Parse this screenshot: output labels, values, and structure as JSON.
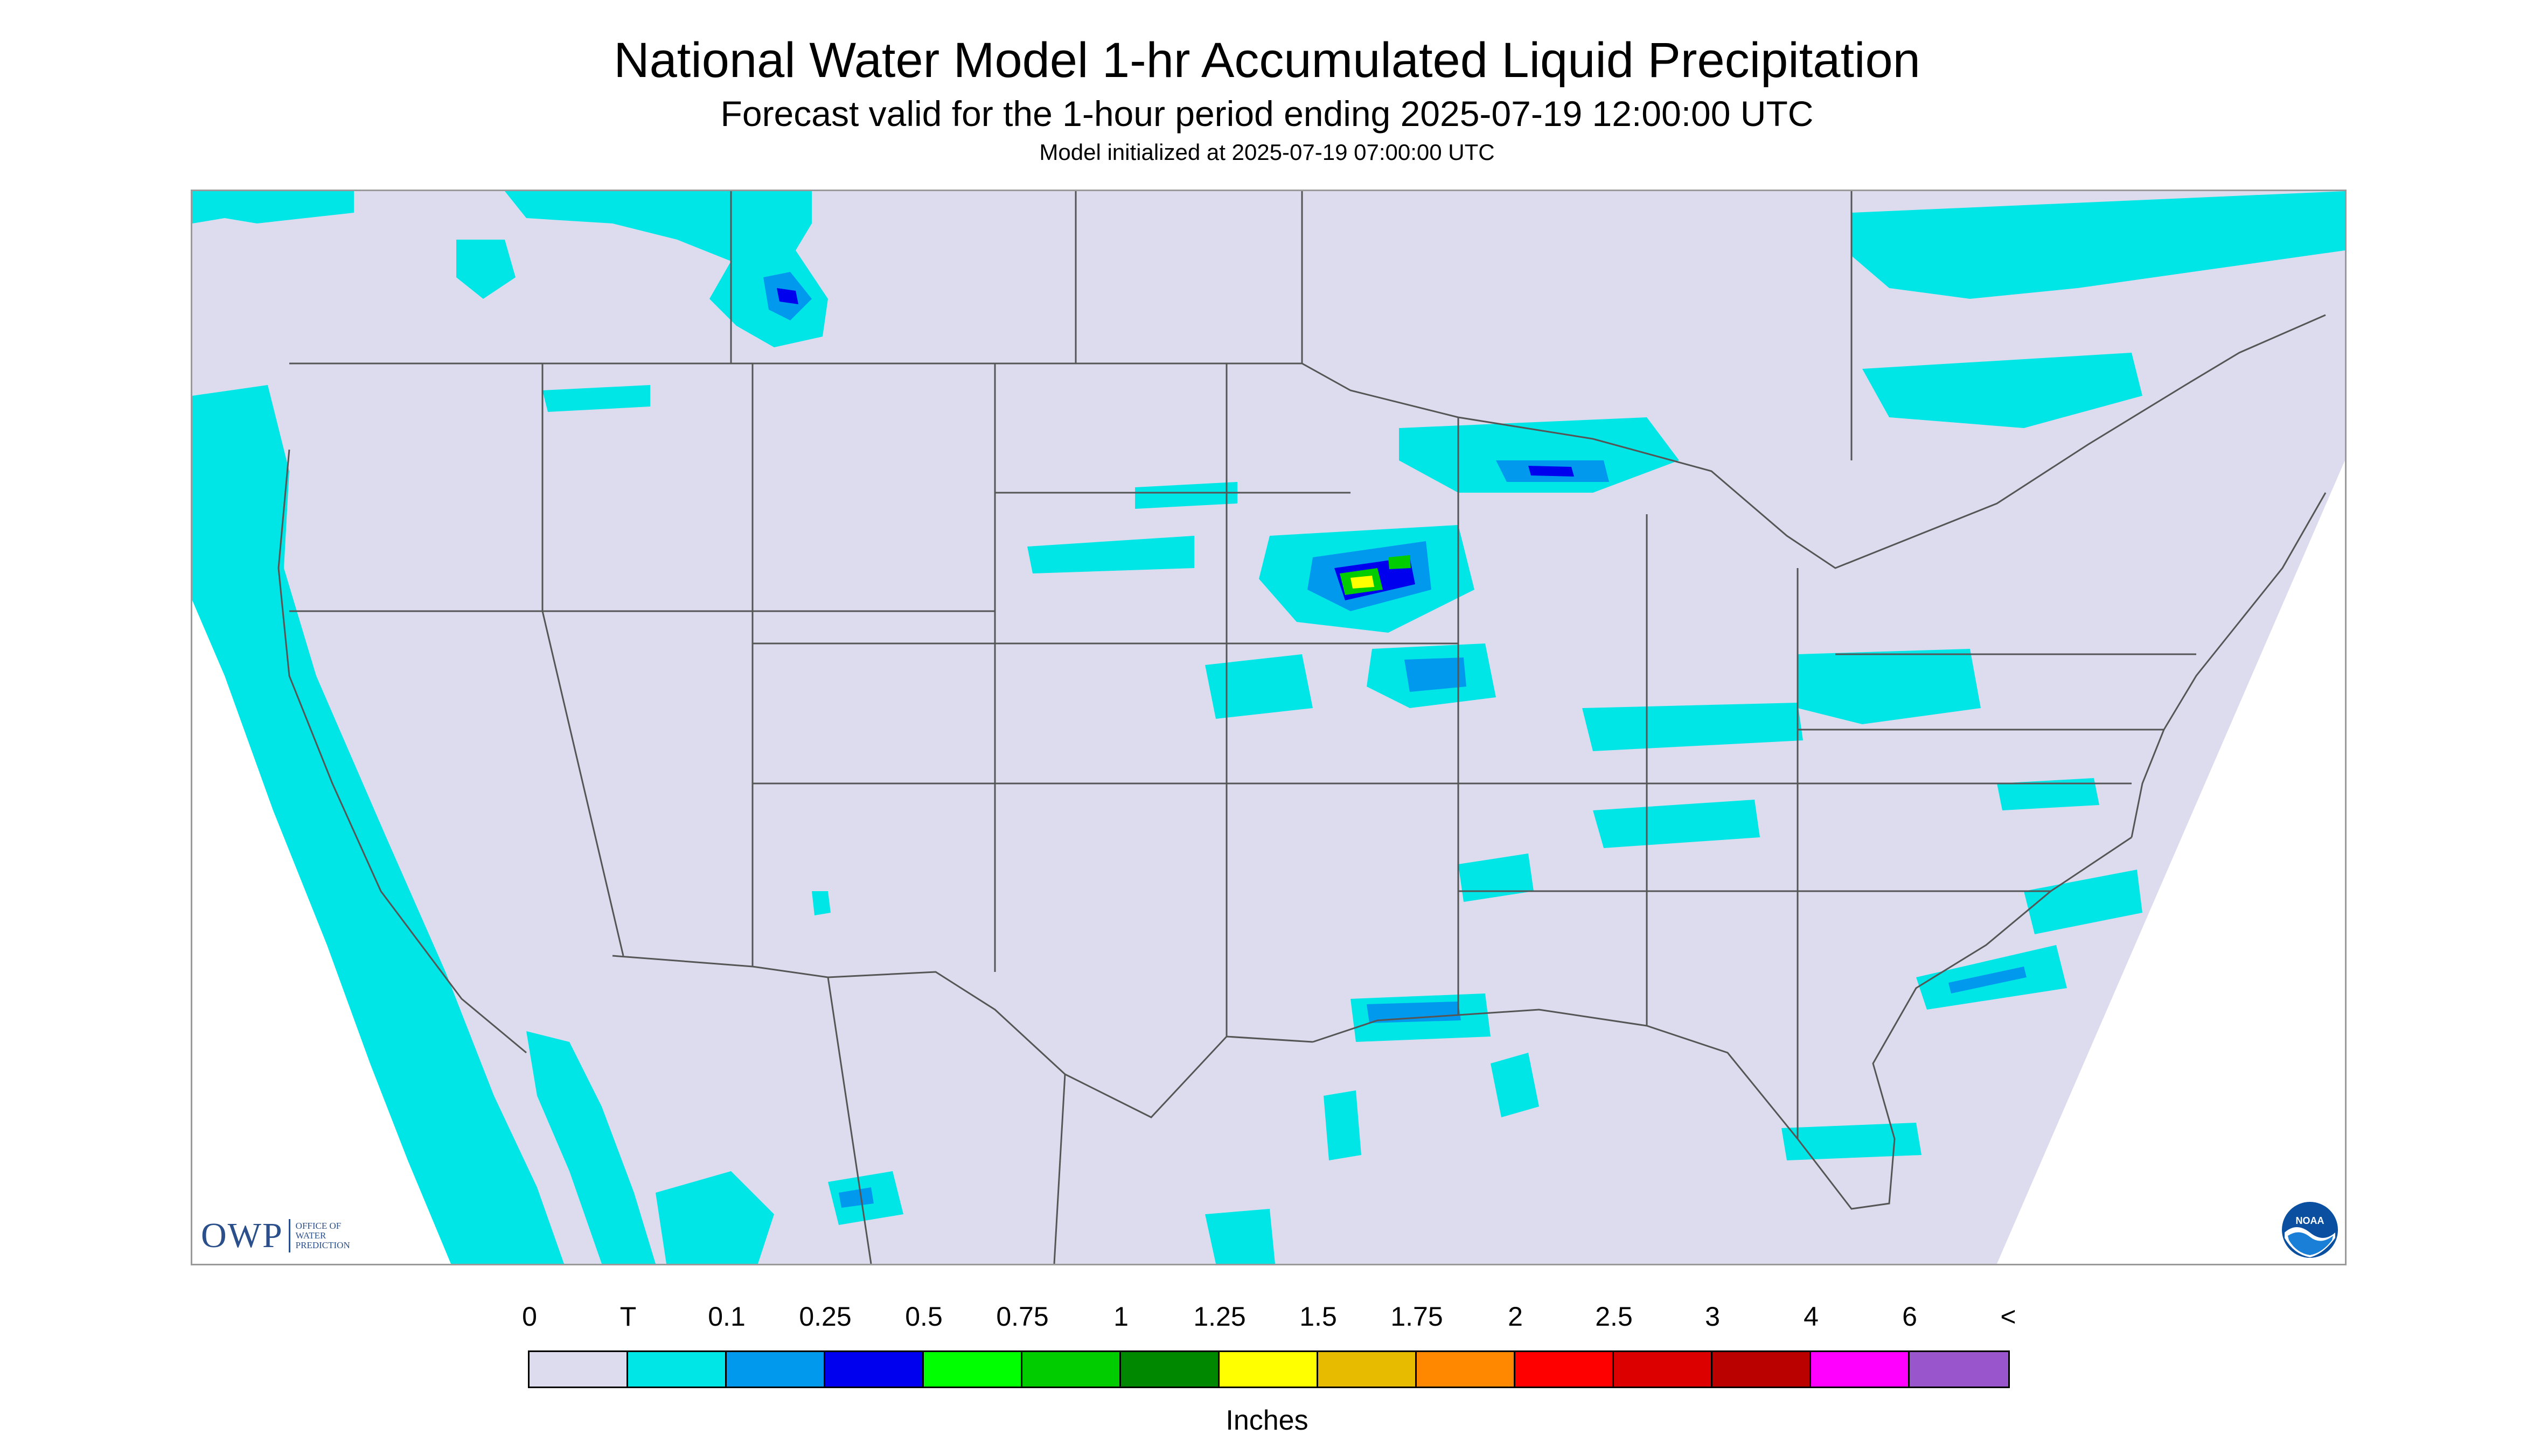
{
  "header": {
    "title": "National Water Model 1-hr Accumulated Liquid Precipitation",
    "subtitle": "Forecast valid for the 1-hour period ending 2025-07-19 12:00:00 UTC",
    "init": "Model initialized at 2025-07-19 07:00:00 UTC"
  },
  "logos": {
    "owp_letters": "OWP",
    "owp_line1": "OFFICE OF",
    "owp_line2": "WATER",
    "owp_line3": "PREDICTION",
    "noaa_text": "NOAA"
  },
  "legend": {
    "labels": [
      "0",
      "T",
      "0.1",
      "0.25",
      "0.5",
      "0.75",
      "1",
      "1.25",
      "1.5",
      "1.75",
      "2",
      "2.5",
      "3",
      "4",
      "6",
      "<"
    ],
    "colors": [
      "#dcdcee",
      "#00e6e6",
      "#0099ee",
      "#0000ee",
      "#00ff00",
      "#00cc00",
      "#008800",
      "#ffff00",
      "#e6bb00",
      "#ff8800",
      "#ff0000",
      "#dd0000",
      "#bb0000",
      "#ff00ff",
      "#9955cc"
    ],
    "units": "Inches"
  },
  "colors": {
    "background": "#dcdcee",
    "trace": "#00e6e6",
    "light": "#0099ee",
    "heavy": "#0000ee",
    "green": "#00cc00",
    "yellow": "#ffff00",
    "border_lines": "#555555"
  }
}
